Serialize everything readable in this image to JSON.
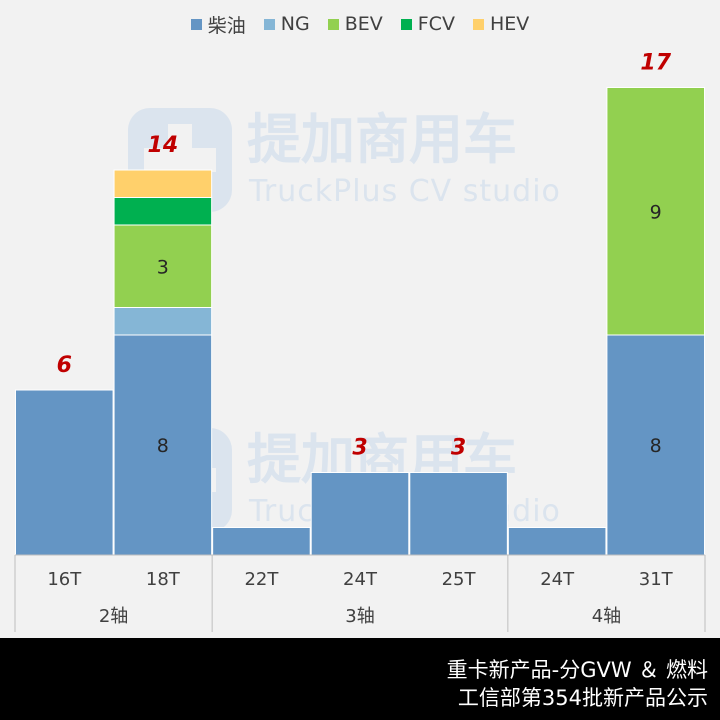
{
  "colors": {
    "diesel": "#6495c4",
    "ng": "#85b6d6",
    "bev": "#92d050",
    "fcv": "#00b050",
    "hev": "#ffd06b",
    "total_label": "#c00000",
    "watermark": "#dbe4ee"
  },
  "watermark": {
    "cn": "提加商用车",
    "en": "TruckPlus CV studio"
  },
  "chart_data": {
    "type": "bar",
    "stacked": true,
    "legend_position": "top",
    "grid": false,
    "categories": [
      "16T",
      "18T",
      "22T",
      "24T",
      "25T",
      "24T",
      "31T"
    ],
    "groups": [
      {
        "label": "2轴",
        "categories": [
          "16T",
          "18T"
        ]
      },
      {
        "label": "3轴",
        "categories": [
          "22T",
          "24T",
          "25T"
        ]
      },
      {
        "label": "4轴",
        "categories": [
          "24T",
          "31T"
        ]
      }
    ],
    "ylim": [
      0,
      18
    ],
    "series": [
      {
        "name": "柴油",
        "key": "diesel",
        "values": [
          6,
          8,
          1,
          3,
          3,
          1,
          8
        ]
      },
      {
        "name": "NG",
        "key": "ng",
        "values": [
          0,
          1,
          0,
          0,
          0,
          0,
          0
        ]
      },
      {
        "name": "BEV",
        "key": "bev",
        "values": [
          0,
          3,
          0,
          0,
          0,
          0,
          9
        ]
      },
      {
        "name": "FCV",
        "key": "fcv",
        "values": [
          0,
          1,
          0,
          0,
          0,
          0,
          0
        ]
      },
      {
        "name": "HEV",
        "key": "hev",
        "values": [
          0,
          1,
          0,
          0,
          0,
          0,
          0
        ]
      }
    ],
    "segment_labels": [
      {
        "category_index": 1,
        "series": "diesel",
        "text": "8"
      },
      {
        "category_index": 1,
        "series": "bev",
        "text": "3"
      },
      {
        "category_index": 6,
        "series": "diesel",
        "text": "8"
      },
      {
        "category_index": 6,
        "series": "bev",
        "text": "9"
      }
    ],
    "totals": [
      "6",
      "14",
      "",
      "3",
      "3",
      "",
      "17"
    ]
  },
  "footer": {
    "line1": "重卡新产品-分GVW ＆ 燃料",
    "line2": "工信部第354批新产品公示"
  }
}
